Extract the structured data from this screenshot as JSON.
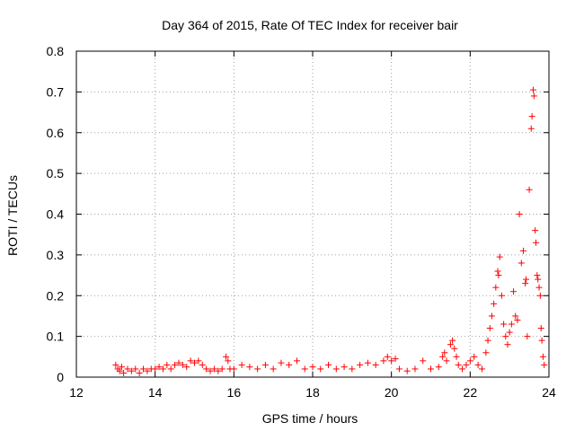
{
  "chart_data": {
    "type": "scatter",
    "title": "Day 364 of 2015, Rate Of TEC Index for receiver bair",
    "xlabel": "GPS time / hours",
    "ylabel": "ROTI / TECUs",
    "xlim": [
      12,
      24
    ],
    "ylim": [
      0,
      0.8
    ],
    "xticks": [
      12,
      14,
      16,
      18,
      20,
      22,
      24
    ],
    "yticks": [
      0,
      0.1,
      0.2,
      0.3,
      0.4,
      0.5,
      0.6,
      0.7,
      0.8
    ],
    "xtick_labels": [
      "12",
      "14",
      "16",
      "18",
      "20",
      "22",
      "24"
    ],
    "ytick_labels": [
      "0",
      "0.1",
      "0.2",
      "0.3",
      "0.4",
      "0.5",
      "0.6",
      "0.7",
      "0.8"
    ],
    "grid": true,
    "marker": "+",
    "color": "#ff0000",
    "series": [
      {
        "name": "ROTI",
        "points": [
          [
            13.0,
            0.03
          ],
          [
            13.05,
            0.02
          ],
          [
            13.1,
            0.015
          ],
          [
            13.15,
            0.025
          ],
          [
            13.2,
            0.01
          ],
          [
            13.3,
            0.02
          ],
          [
            13.4,
            0.015
          ],
          [
            13.5,
            0.02
          ],
          [
            13.6,
            0.01
          ],
          [
            13.7,
            0.02
          ],
          [
            13.8,
            0.015
          ],
          [
            13.9,
            0.02
          ],
          [
            14.0,
            0.02
          ],
          [
            14.1,
            0.025
          ],
          [
            14.2,
            0.02
          ],
          [
            14.3,
            0.03
          ],
          [
            14.4,
            0.02
          ],
          [
            14.5,
            0.03
          ],
          [
            14.6,
            0.035
          ],
          [
            14.7,
            0.03
          ],
          [
            14.8,
            0.025
          ],
          [
            14.9,
            0.04
          ],
          [
            15.0,
            0.035
          ],
          [
            15.1,
            0.04
          ],
          [
            15.2,
            0.03
          ],
          [
            15.3,
            0.02
          ],
          [
            15.4,
            0.015
          ],
          [
            15.5,
            0.02
          ],
          [
            15.6,
            0.015
          ],
          [
            15.7,
            0.02
          ],
          [
            15.8,
            0.05
          ],
          [
            15.85,
            0.04
          ],
          [
            15.9,
            0.02
          ],
          [
            16.0,
            0.02
          ],
          [
            16.2,
            0.03
          ],
          [
            16.4,
            0.025
          ],
          [
            16.6,
            0.02
          ],
          [
            16.8,
            0.03
          ],
          [
            17.0,
            0.02
          ],
          [
            17.2,
            0.035
          ],
          [
            17.4,
            0.03
          ],
          [
            17.6,
            0.04
          ],
          [
            17.8,
            0.02
          ],
          [
            18.0,
            0.025
          ],
          [
            18.2,
            0.02
          ],
          [
            18.4,
            0.03
          ],
          [
            18.6,
            0.02
          ],
          [
            18.8,
            0.025
          ],
          [
            19.0,
            0.02
          ],
          [
            19.2,
            0.03
          ],
          [
            19.4,
            0.035
          ],
          [
            19.6,
            0.03
          ],
          [
            19.8,
            0.04
          ],
          [
            19.9,
            0.05
          ],
          [
            20.0,
            0.04
          ],
          [
            20.1,
            0.045
          ],
          [
            20.2,
            0.02
          ],
          [
            20.4,
            0.015
          ],
          [
            20.6,
            0.02
          ],
          [
            20.8,
            0.04
          ],
          [
            21.0,
            0.02
          ],
          [
            21.2,
            0.025
          ],
          [
            21.3,
            0.05
          ],
          [
            21.35,
            0.06
          ],
          [
            21.4,
            0.04
          ],
          [
            21.5,
            0.08
          ],
          [
            21.55,
            0.09
          ],
          [
            21.6,
            0.07
          ],
          [
            21.65,
            0.05
          ],
          [
            21.7,
            0.03
          ],
          [
            21.8,
            0.02
          ],
          [
            21.9,
            0.03
          ],
          [
            22.0,
            0.04
          ],
          [
            22.1,
            0.05
          ],
          [
            22.2,
            0.03
          ],
          [
            22.3,
            0.02
          ],
          [
            22.4,
            0.06
          ],
          [
            22.45,
            0.09
          ],
          [
            22.5,
            0.12
          ],
          [
            22.55,
            0.15
          ],
          [
            22.6,
            0.18
          ],
          [
            22.65,
            0.22
          ],
          [
            22.7,
            0.26
          ],
          [
            22.72,
            0.25
          ],
          [
            22.75,
            0.295
          ],
          [
            22.8,
            0.2
          ],
          [
            22.85,
            0.13
          ],
          [
            22.9,
            0.1
          ],
          [
            22.95,
            0.08
          ],
          [
            23.0,
            0.11
          ],
          [
            23.05,
            0.13
          ],
          [
            23.1,
            0.21
          ],
          [
            23.15,
            0.15
          ],
          [
            23.2,
            0.14
          ],
          [
            23.25,
            0.4
          ],
          [
            23.3,
            0.28
          ],
          [
            23.35,
            0.31
          ],
          [
            23.4,
            0.23
          ],
          [
            23.42,
            0.24
          ],
          [
            23.45,
            0.1
          ],
          [
            23.5,
            0.46
          ],
          [
            23.55,
            0.61
          ],
          [
            23.57,
            0.64
          ],
          [
            23.6,
            0.705
          ],
          [
            23.62,
            0.69
          ],
          [
            23.65,
            0.36
          ],
          [
            23.67,
            0.33
          ],
          [
            23.7,
            0.25
          ],
          [
            23.72,
            0.24
          ],
          [
            23.75,
            0.22
          ],
          [
            23.78,
            0.2
          ],
          [
            23.8,
            0.12
          ],
          [
            23.82,
            0.09
          ],
          [
            23.85,
            0.05
          ],
          [
            23.88,
            0.03
          ]
        ]
      }
    ]
  }
}
